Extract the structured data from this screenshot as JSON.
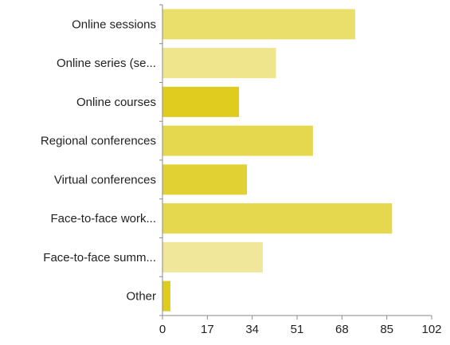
{
  "chart_data": {
    "type": "bar",
    "orientation": "horizontal",
    "categories": [
      "Online sessions",
      "Online series (se...",
      "Online courses",
      "Regional conferences",
      "Virtual conferences",
      "Face-to-face work...",
      "Face-to-face summ...",
      "Other"
    ],
    "values": [
      73,
      43,
      29,
      57,
      32,
      87,
      38,
      3
    ],
    "bar_colors": [
      "#e9df6a",
      "#eee58c",
      "#dfcc1f",
      "#e6d84e",
      "#e2d133",
      "#e6d84e",
      "#f0e79a",
      "#dfcc1f"
    ],
    "xlim": [
      0,
      102
    ],
    "xticks": [
      "0",
      "17",
      "34",
      "51",
      "68",
      "85",
      "102"
    ],
    "xlabel": "",
    "ylabel": "",
    "title": "",
    "grid": false,
    "legend": "none",
    "axis_color": "#8a8a8a"
  }
}
